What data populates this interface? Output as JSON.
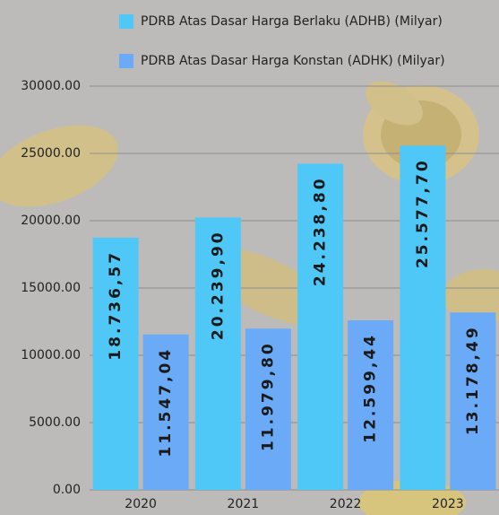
{
  "chart_data": {
    "type": "bar",
    "categories": [
      "2020",
      "2021",
      "2022",
      "2023"
    ],
    "series": [
      {
        "name": "PDRB Atas Dasar Harga Berlaku (ADHB) (Milyar)",
        "color": "#4fc8f7",
        "values": [
          18736.57,
          20239.9,
          24238.8,
          25577.7
        ],
        "value_labels": [
          "18.736,57",
          "20.239,90",
          "24.238,80",
          "25.577,70"
        ]
      },
      {
        "name": "PDRB Atas Dasar Harga Konstan (ADHK) (Milyar)",
        "color": "#6aaaf7",
        "values": [
          11547.04,
          11979.8,
          12599.44,
          13178.49
        ],
        "value_labels": [
          "11.547,04",
          "11.979,80",
          "12.599,44",
          "13.178,49"
        ]
      }
    ],
    "ylim": [
      0,
      30000
    ],
    "yticks": [
      {
        "value": 0,
        "label": "0.00"
      },
      {
        "value": 5000,
        "label": "5000.00"
      },
      {
        "value": 10000,
        "label": "10000.00"
      },
      {
        "value": 15000,
        "label": "15000.00"
      },
      {
        "value": 20000,
        "label": "20000.00"
      },
      {
        "value": 25000,
        "label": "25000.00"
      },
      {
        "value": 30000,
        "label": "30000.00"
      }
    ],
    "grid": true,
    "legend": "top"
  }
}
